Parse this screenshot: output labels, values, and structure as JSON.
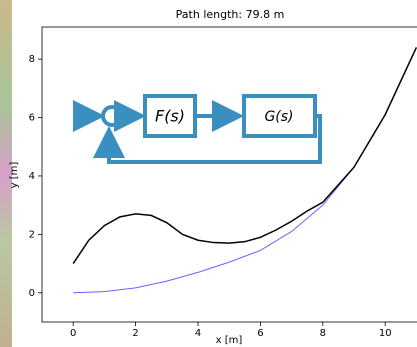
{
  "chart_data": {
    "type": "line",
    "title": "Path length: 79.8 m",
    "x_label": "x [m]",
    "y_label": "y [m]",
    "series": [
      {
        "color": "#000000",
        "x": [
          0,
          0.5,
          1,
          1.5,
          2,
          2.5,
          3,
          3.5,
          4,
          4.5,
          5,
          5.5,
          6,
          6.5,
          7,
          7.5,
          8,
          9,
          10,
          11
        ],
        "values": [
          1.0,
          1.8,
          2.3,
          2.6,
          2.7,
          2.65,
          2.4,
          2.0,
          1.8,
          1.72,
          1.7,
          1.75,
          1.9,
          2.15,
          2.45,
          2.8,
          3.1,
          4.3,
          6.1,
          8.4
        ]
      },
      {
        "color": "#6666ff",
        "x": [
          0,
          1,
          2,
          3,
          4,
          5,
          6,
          7,
          8,
          9,
          10,
          11
        ],
        "values": [
          0,
          0.04,
          0.17,
          0.4,
          0.7,
          1.05,
          1.45,
          2.1,
          3.0,
          4.3,
          6.1,
          8.4
        ]
      }
    ],
    "xlim": [
      -1,
      11
    ],
    "ylim": [
      -1,
      9.1
    ],
    "xticks": [
      0,
      2,
      4,
      6,
      8,
      10
    ],
    "yticks": [
      0,
      2,
      4,
      6,
      8
    ]
  },
  "overlay": {
    "blocks": [
      "F(s)",
      "G(s)"
    ]
  }
}
